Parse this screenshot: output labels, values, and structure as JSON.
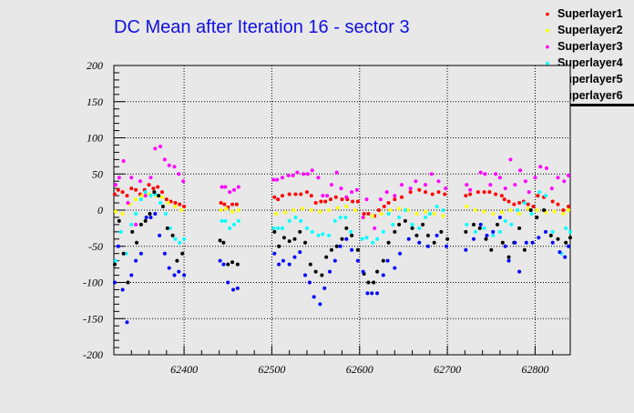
{
  "chart_data": {
    "type": "scatter",
    "title": "DC Mean after Iteration 16 - sector 3",
    "xlabel": "",
    "ylabel": "",
    "xlim": [
      62320,
      62840
    ],
    "ylim": [
      -200,
      200
    ],
    "grid": true,
    "legend_position": "top-right",
    "x_ticks": [
      62400,
      62500,
      62600,
      62700,
      62800
    ],
    "y_ticks": [
      -200,
      -150,
      -100,
      -50,
      0,
      50,
      100,
      150,
      200
    ],
    "series": [
      {
        "name": "Superlayer1",
        "color": "#ff0000",
        "x": [
          62321,
          62325,
          62330,
          62335,
          62340,
          62345,
          62350,
          62355,
          62360,
          62365,
          62370,
          62375,
          62380,
          62385,
          62390,
          62395,
          62400,
          62442,
          62446,
          62450,
          62455,
          62460,
          62503,
          62507,
          62512,
          62520,
          62527,
          62533,
          62540,
          62545,
          62550,
          62556,
          62561,
          62567,
          62573,
          62580,
          62586,
          62592,
          62598,
          62605,
          62610,
          62617,
          62622,
          62628,
          62633,
          62640,
          62648,
          62658,
          62668,
          62675,
          62683,
          62690,
          62697,
          62721,
          62726,
          62735,
          62742,
          62748,
          62755,
          62762,
          62765,
          62770,
          62776,
          62782,
          62787,
          62792,
          62798,
          62803,
          62810,
          62820,
          62826,
          62832,
          62838
        ],
        "y": [
          22,
          28,
          25,
          20,
          30,
          28,
          22,
          28,
          35,
          30,
          32,
          25,
          15,
          12,
          10,
          8,
          5,
          10,
          8,
          4,
          8,
          8,
          18,
          15,
          20,
          22,
          22,
          22,
          25,
          20,
          10,
          12,
          12,
          15,
          18,
          15,
          15,
          12,
          12,
          -5,
          -5,
          -8,
          0,
          5,
          10,
          15,
          18,
          25,
          28,
          25,
          22,
          25,
          22,
          20,
          22,
          25,
          25,
          25,
          22,
          20,
          15,
          12,
          8,
          10,
          12,
          8,
          5,
          20,
          18,
          12,
          8,
          0,
          5
        ]
      },
      {
        "name": "Superlayer2",
        "color": "#ffff00",
        "x": [
          62322,
          62330,
          62338,
          62345,
          62352,
          62360,
          62368,
          62375,
          62382,
          62390,
          62397,
          62442,
          62448,
          62455,
          62462,
          62505,
          62515,
          62525,
          62535,
          62545,
          62555,
          62565,
          62575,
          62585,
          62595,
          62605,
          62615,
          62625,
          62635,
          62645,
          62655,
          62665,
          62675,
          62685,
          62695,
          62722,
          62732,
          62742,
          62752,
          62762,
          62772,
          62782,
          62792,
          62802,
          62812,
          62822,
          62832,
          62838
        ],
        "y": [
          -2,
          -5,
          8,
          15,
          20,
          22,
          20,
          18,
          10,
          5,
          0,
          0,
          2,
          -2,
          0,
          -5,
          -3,
          0,
          2,
          0,
          -2,
          0,
          3,
          5,
          0,
          -10,
          -8,
          -5,
          0,
          2,
          0,
          -5,
          -2,
          -5,
          -8,
          5,
          0,
          -2,
          -5,
          -3,
          0,
          -5,
          2,
          0,
          -3,
          -2,
          -5,
          0
        ]
      },
      {
        "name": "Superlayer3",
        "color": "#ff00ff",
        "x": [
          62322,
          62326,
          62331,
          62336,
          62340,
          62345,
          62350,
          62356,
          62362,
          62367,
          62373,
          62378,
          62383,
          62389,
          62394,
          62399,
          62443,
          62447,
          62452,
          62457,
          62462,
          62502,
          62506,
          62512,
          62519,
          62524,
          62529,
          62536,
          62541,
          62546,
          62553,
          62558,
          62563,
          62568,
          62574,
          62579,
          62585,
          62591,
          62597,
          62604,
          62608,
          62617,
          62624,
          62631,
          62640,
          62648,
          62658,
          62664,
          62675,
          62682,
          62690,
          62698,
          62722,
          62726,
          62738,
          62743,
          62749,
          62755,
          62760,
          62766,
          62772,
          62777,
          62783,
          62789,
          62793,
          62800,
          62806,
          62813,
          62819,
          62826,
          62833,
          62838
        ],
        "y": [
          35,
          45,
          68,
          10,
          45,
          -20,
          40,
          20,
          45,
          85,
          88,
          70,
          62,
          60,
          50,
          40,
          32,
          32,
          25,
          28,
          32,
          42,
          42,
          45,
          48,
          48,
          52,
          50,
          50,
          55,
          45,
          20,
          20,
          35,
          52,
          30,
          18,
          25,
          28,
          -10,
          15,
          -25,
          15,
          25,
          20,
          35,
          30,
          40,
          35,
          50,
          40,
          30,
          35,
          28,
          52,
          50,
          35,
          50,
          45,
          30,
          70,
          35,
          55,
          40,
          25,
          45,
          60,
          58,
          30,
          45,
          40,
          48
        ]
      },
      {
        "name": "Superlayer4",
        "color": "#00ffff",
        "x": [
          62322,
          62328,
          62334,
          62340,
          62345,
          62351,
          62356,
          62362,
          62367,
          62373,
          62379,
          62384,
          62390,
          62395,
          62400,
          62443,
          62447,
          62452,
          62457,
          62462,
          62502,
          62507,
          62512,
          62520,
          62527,
          62533,
          62540,
          62546,
          62553,
          62558,
          62565,
          62572,
          62578,
          62584,
          62590,
          62603,
          62608,
          62615,
          62620,
          62627,
          62633,
          62638,
          62645,
          62652,
          62660,
          62668,
          62675,
          62680,
          62688,
          62695,
          62722,
          62732,
          62742,
          62752,
          62760,
          62766,
          62773,
          62780,
          62788,
          62796,
          62805,
          62812,
          62820,
          62830,
          62835,
          62840
        ],
        "y": [
          -70,
          -30,
          -60,
          -20,
          -5,
          15,
          25,
          20,
          22,
          10,
          -5,
          -25,
          -40,
          -45,
          -40,
          -15,
          -15,
          -25,
          -20,
          -15,
          -25,
          -25,
          -25,
          -15,
          -10,
          -15,
          -25,
          -30,
          -35,
          -33,
          -35,
          -15,
          -10,
          -10,
          -30,
          -40,
          -38,
          -45,
          -40,
          -30,
          -5,
          -20,
          -10,
          0,
          -20,
          -25,
          -10,
          -5,
          5,
          0,
          -20,
          -30,
          -25,
          -35,
          -30,
          -15,
          -20,
          0,
          10,
          -5,
          25,
          20,
          -30,
          -60,
          -25,
          -30
        ]
      },
      {
        "name": "Superlayer5",
        "color": "#000000",
        "x": [
          62321,
          62326,
          62331,
          62336,
          62341,
          62346,
          62351,
          62356,
          62361,
          62366,
          62371,
          62376,
          62381,
          62387,
          62392,
          62398,
          62441,
          62445,
          62450,
          62455,
          62461,
          62503,
          62508,
          62514,
          62520,
          62526,
          62532,
          62538,
          62544,
          62550,
          62557,
          62562,
          62568,
          62574,
          62580,
          62585,
          62591,
          62598,
          62605,
          62610,
          62616,
          62620,
          62627,
          62633,
          62640,
          62645,
          62652,
          62660,
          62665,
          62672,
          62678,
          62685,
          62693,
          62700,
          62721,
          62730,
          62737,
          62744,
          62750,
          62757,
          62763,
          62770,
          62776,
          62782,
          62788,
          62795,
          62802,
          62810,
          62818,
          62826,
          62835,
          62840
        ],
        "y": [
          -75,
          -15,
          -60,
          -100,
          -30,
          -45,
          -20,
          -15,
          -5,
          25,
          20,
          5,
          -25,
          -35,
          -70,
          -60,
          -42,
          -45,
          -75,
          -72,
          -75,
          -30,
          -50,
          -38,
          -43,
          -40,
          -30,
          -45,
          -75,
          -85,
          -90,
          -65,
          -55,
          -50,
          -40,
          -25,
          -35,
          -55,
          -88,
          -100,
          -100,
          -85,
          -70,
          -45,
          -30,
          -20,
          -15,
          -25,
          -35,
          -20,
          -35,
          -45,
          -30,
          -40,
          -30,
          -20,
          -25,
          -40,
          -55,
          -20,
          -45,
          -65,
          -45,
          -25,
          -55,
          0,
          -10,
          0,
          -35,
          -40,
          -45,
          -38
        ]
      },
      {
        "name": "Superlayer6",
        "color": "#0000ff",
        "x": [
          62321,
          62325,
          62330,
          62335,
          62340,
          62345,
          62351,
          62357,
          62362,
          62367,
          62372,
          62378,
          62383,
          62389,
          62394,
          62400,
          62441,
          62445,
          62450,
          62456,
          62461,
          62503,
          62508,
          62513,
          62520,
          62526,
          62532,
          62538,
          62543,
          62548,
          62555,
          62560,
          62566,
          62572,
          62578,
          62585,
          62591,
          62598,
          62604,
          62609,
          62614,
          62620,
          62627,
          62632,
          62640,
          62646,
          62656,
          62668,
          62678,
          62688,
          62699,
          62721,
          62730,
          62738,
          62745,
          62752,
          62760,
          62766,
          62770,
          62777,
          62782,
          62790,
          62797,
          62804,
          62812,
          62820,
          62828,
          62834,
          62838
        ],
        "y": [
          -100,
          -50,
          -110,
          -155,
          -90,
          -70,
          -60,
          -10,
          -10,
          -5,
          -35,
          -60,
          -80,
          -90,
          -85,
          -90,
          -70,
          -75,
          -100,
          -110,
          -108,
          -60,
          -75,
          -70,
          -75,
          -65,
          -58,
          -90,
          -100,
          -120,
          -130,
          -108,
          -85,
          -70,
          -50,
          -40,
          -55,
          -70,
          -85,
          -115,
          -115,
          -115,
          -90,
          -70,
          -80,
          -60,
          -40,
          -45,
          -50,
          -35,
          -50,
          -55,
          -40,
          -20,
          -35,
          -30,
          -10,
          -50,
          -70,
          -45,
          -85,
          -45,
          -45,
          -38,
          -30,
          -45,
          -58,
          -65,
          -50
        ]
      }
    ]
  }
}
